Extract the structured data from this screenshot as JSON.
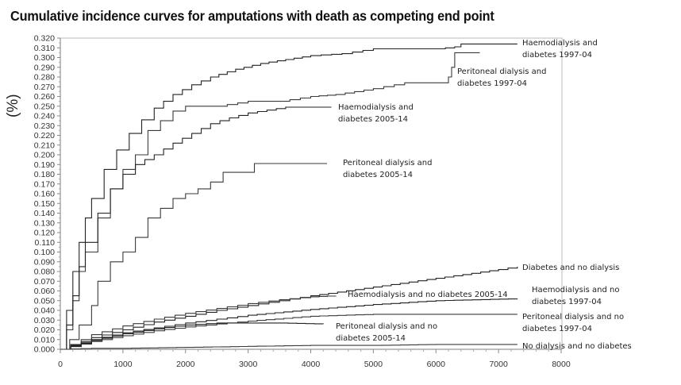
{
  "chart_data": {
    "type": "line",
    "title": "Cumulative incidence curves for amputations with death as competing end point",
    "xlabel": "",
    "ylabel": "(%)",
    "xlim": [
      0,
      8000
    ],
    "ylim": [
      0.0,
      0.32
    ],
    "x_ticks": [
      0,
      1000,
      2000,
      3000,
      4000,
      5000,
      6000,
      7000,
      8000
    ],
    "x_tick_labels": [
      "0",
      "1000",
      "2000",
      "3000",
      "4000",
      "5000",
      "6000",
      "7000",
      "8000"
    ],
    "y_ticks": [
      0.0,
      0.01,
      0.02,
      0.03,
      0.04,
      0.05,
      0.06,
      0.07,
      0.08,
      0.09,
      0.1,
      0.11,
      0.12,
      0.13,
      0.14,
      0.15,
      0.16,
      0.17,
      0.18,
      0.19,
      0.2,
      0.21,
      0.22,
      0.23,
      0.24,
      0.25,
      0.26,
      0.27,
      0.28,
      0.29,
      0.3,
      0.31,
      0.32
    ],
    "y_tick_labels": [
      "0.000",
      "0.010",
      "0.020",
      "0.030",
      "0.040",
      "0.050",
      "0.060",
      "0.070",
      "0.080",
      "0.090",
      "0.100",
      "0.110",
      "0.120",
      "0.130",
      "0.140",
      "0.150",
      "0.160",
      "0.170",
      "0.180",
      "0.190",
      "0.200",
      "0.210",
      "0.220",
      "0.230",
      "0.240",
      "0.250",
      "0.260",
      "0.270",
      "0.280",
      "0.290",
      "0.300",
      "0.310",
      "0.320"
    ],
    "grid": false,
    "legend_position": "inline labels at curve ends",
    "series": [
      {
        "name": "Haemodialysis and diabetes 1997-04",
        "label_lines": [
          "Haemodialysis and",
          "diabetes 1997-04"
        ],
        "x": [
          0,
          100,
          200,
          300,
          400,
          500,
          700,
          900,
          1100,
          1300,
          1500,
          1800,
          2100,
          2400,
          2800,
          3200,
          3600,
          4000,
          4500,
          5000,
          5500,
          6000,
          6300,
          6400,
          7300
        ],
        "y": [
          0.0,
          0.04,
          0.08,
          0.11,
          0.135,
          0.155,
          0.185,
          0.205,
          0.222,
          0.236,
          0.248,
          0.262,
          0.272,
          0.28,
          0.288,
          0.294,
          0.298,
          0.302,
          0.304,
          0.309,
          0.309,
          0.309,
          0.311,
          0.314,
          0.314
        ]
      },
      {
        "name": "Peritoneal dialysis and diabetes 1997-04",
        "label_lines": [
          "Peritoneal dialysis and",
          "diabetes 1997-04"
        ],
        "x": [
          0,
          100,
          200,
          300,
          400,
          600,
          800,
          1000,
          1200,
          1400,
          1600,
          1800,
          2000,
          2500,
          3000,
          3500,
          4000,
          4400,
          5000,
          5500,
          6100,
          6200,
          6250,
          6300,
          6700
        ],
        "y": [
          0.0,
          0.02,
          0.05,
          0.08,
          0.1,
          0.135,
          0.165,
          0.185,
          0.2,
          0.225,
          0.235,
          0.245,
          0.25,
          0.25,
          0.255,
          0.255,
          0.26,
          0.262,
          0.268,
          0.274,
          0.274,
          0.28,
          0.29,
          0.305,
          0.305
        ]
      },
      {
        "name": "Haemodialysis and diabetes 2005-14",
        "label_lines": [
          "Haemodialysis and",
          "diabetes 2005-14"
        ],
        "x": [
          0,
          100,
          200,
          300,
          400,
          600,
          800,
          1000,
          1200,
          1500,
          1800,
          2100,
          2400,
          2700,
          3000,
          3300,
          3600,
          4330
        ],
        "y": [
          0.0,
          0.025,
          0.055,
          0.085,
          0.11,
          0.14,
          0.165,
          0.18,
          0.19,
          0.2,
          0.212,
          0.222,
          0.232,
          0.238,
          0.243,
          0.246,
          0.249,
          0.249
        ]
      },
      {
        "name": "Peritoneal dialysis and diabetes 2005-14",
        "label_lines": [
          "Peritoneal dialysis and",
          "diabetes 2005-14"
        ],
        "x": [
          0,
          150,
          300,
          500,
          600,
          800,
          1000,
          1200,
          1400,
          1600,
          1800,
          2000,
          2200,
          2400,
          2600,
          3000,
          3100,
          4260
        ],
        "y": [
          0.0,
          0.01,
          0.025,
          0.045,
          0.07,
          0.09,
          0.1,
          0.115,
          0.135,
          0.145,
          0.155,
          0.16,
          0.165,
          0.172,
          0.182,
          0.182,
          0.191,
          0.191
        ]
      },
      {
        "name": "Diabetes and no dialysis",
        "label_lines": [
          "Diabetes and no dialysis"
        ],
        "x": [
          0,
          500,
          1000,
          1500,
          2000,
          2500,
          3000,
          3500,
          4000,
          5000,
          6000,
          7000,
          7300
        ],
        "y": [
          0.0,
          0.012,
          0.02,
          0.028,
          0.034,
          0.04,
          0.045,
          0.05,
          0.055,
          0.064,
          0.073,
          0.082,
          0.085
        ]
      },
      {
        "name": "Haemodialysis and no diabetes 2005-14",
        "label_lines": [
          "Haemodialysis and no diabetes 2005-14"
        ],
        "x": [
          0,
          500,
          1000,
          1500,
          2000,
          2500,
          3000,
          3500,
          4000,
          4400
        ],
        "y": [
          0.0,
          0.015,
          0.024,
          0.031,
          0.037,
          0.042,
          0.047,
          0.051,
          0.054,
          0.055
        ]
      },
      {
        "name": "Haemodialysis and no diabetes 1997-04",
        "label_lines": [
          "Haemodialysis and no",
          "diabetes 1997-04"
        ],
        "x": [
          0,
          500,
          1000,
          1500,
          2000,
          2500,
          3000,
          4000,
          5000,
          6000,
          7300
        ],
        "y": [
          0.0,
          0.01,
          0.017,
          0.022,
          0.027,
          0.031,
          0.035,
          0.041,
          0.046,
          0.05,
          0.052
        ]
      },
      {
        "name": "Peritoneal dialysis and no diabetes 1997-04",
        "label_lines": [
          "Peritoneal dialysis and no",
          "diabetes 1997-04"
        ],
        "x": [
          0,
          500,
          1000,
          1500,
          2000,
          2500,
          3000,
          4000,
          5000,
          6000,
          7300
        ],
        "y": [
          0.0,
          0.008,
          0.014,
          0.019,
          0.023,
          0.026,
          0.029,
          0.034,
          0.036,
          0.036,
          0.036
        ]
      },
      {
        "name": "Peritoneal dialysis and no diabetes 2005-14",
        "label_lines": [
          "Peritoneal dialysis and no",
          "diabetes  2005-14"
        ],
        "x": [
          0,
          500,
          1000,
          1500,
          2000,
          2500,
          3000,
          3500,
          4200
        ],
        "y": [
          0.0,
          0.009,
          0.016,
          0.021,
          0.025,
          0.027,
          0.027,
          0.027,
          0.026
        ]
      },
      {
        "name": "No dialysis and no diabetes",
        "label_lines": [
          "No dialysis and no diabetes"
        ],
        "x": [
          0,
          500,
          1000,
          2000,
          3000,
          4000,
          5000,
          6000,
          7300
        ],
        "y": [
          0.0,
          0.001,
          0.001,
          0.002,
          0.003,
          0.004,
          0.004,
          0.005,
          0.005
        ]
      }
    ]
  }
}
